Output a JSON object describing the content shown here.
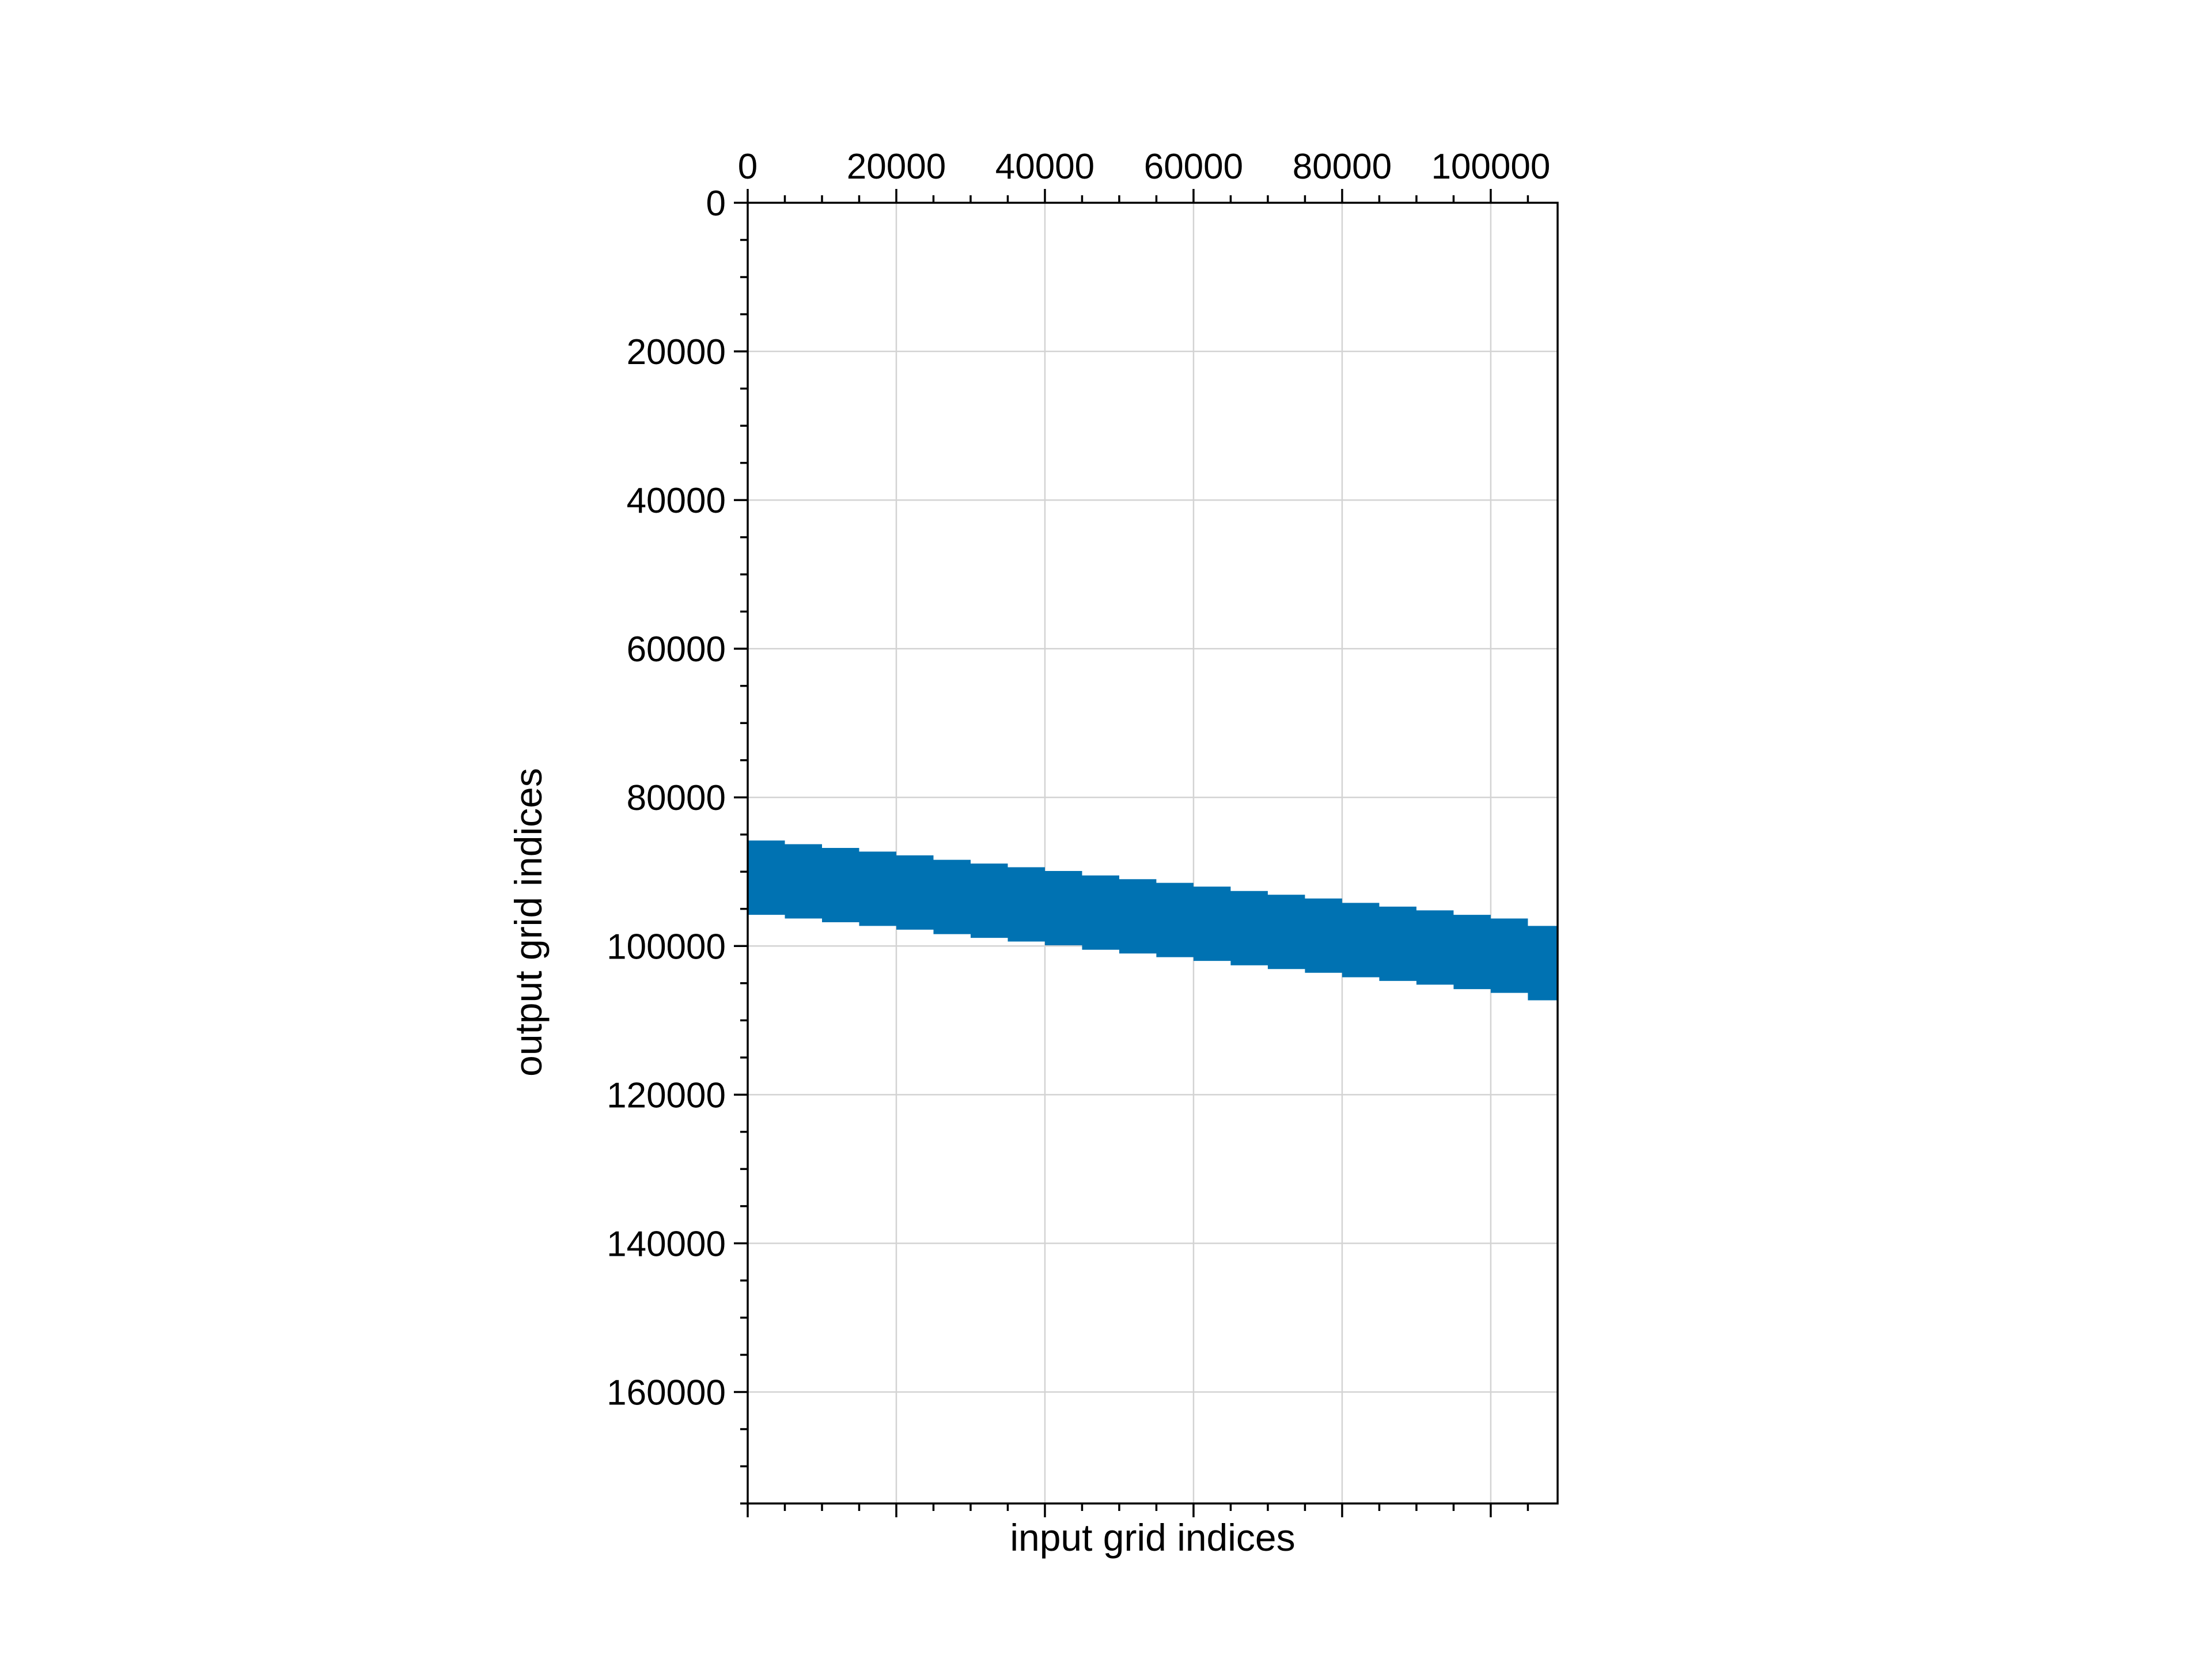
{
  "chart_data": {
    "type": "band",
    "xlabel": "input grid indices",
    "ylabel": "output grid indices",
    "xlim": [
      0,
      109000
    ],
    "ylim": [
      175000,
      0
    ],
    "y_inverted": true,
    "x_axis_position": "top",
    "x_ticks": [
      0,
      20000,
      40000,
      60000,
      80000,
      100000
    ],
    "x_tick_labels": [
      "0",
      "20000",
      "40000",
      "60000",
      "80000",
      "100000"
    ],
    "y_ticks": [
      0,
      20000,
      40000,
      60000,
      80000,
      100000,
      120000,
      140000,
      160000
    ],
    "y_tick_labels": [
      "0",
      "20000",
      "40000",
      "60000",
      "80000",
      "100000",
      "120000",
      "140000",
      "160000"
    ],
    "x_minor_step": 5000,
    "y_minor_step": 5000,
    "grid": true,
    "band_color": "#0072b2",
    "band": {
      "x_start": [
        0,
        5000,
        10000,
        15000,
        20000,
        25000,
        30000,
        35000,
        40000,
        45000,
        50000,
        55000,
        60000,
        65000,
        70000,
        75000,
        80000,
        85000,
        90000,
        95000,
        100000,
        105000
      ],
      "x_end": 109000,
      "y_top": [
        85800,
        86300,
        86800,
        87300,
        87800,
        88400,
        88900,
        89400,
        89900,
        90500,
        91000,
        91500,
        92000,
        92600,
        93100,
        93600,
        94200,
        94700,
        95200,
        95800,
        96300,
        97300
      ],
      "y_bottom": [
        95800,
        96300,
        96800,
        97300,
        97800,
        98400,
        98900,
        99400,
        99900,
        100500,
        101000,
        101500,
        102000,
        102600,
        103100,
        103600,
        104200,
        104700,
        105200,
        105800,
        106300,
        107300
      ]
    }
  }
}
